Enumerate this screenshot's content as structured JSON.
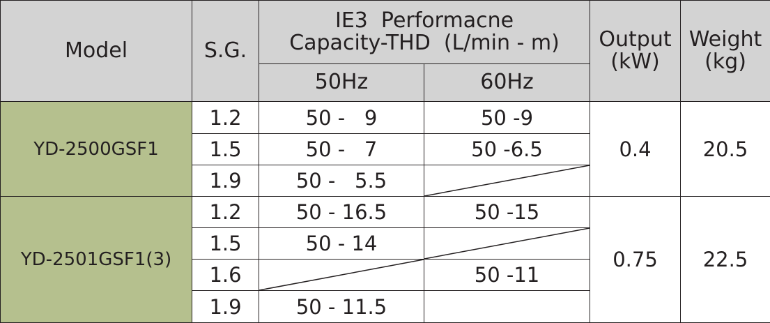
{
  "headers": {
    "model": "Model",
    "sg": "S.G.",
    "perf_line1": "IE3  Performacne",
    "perf_line2": "Capacity-THD  (L/min - m)",
    "hz50": "50Hz",
    "hz60": "60Hz",
    "output_line1": "Output",
    "output_line2": "(kW)",
    "weight_line1": "Weight",
    "weight_line2": "(kg)"
  },
  "groups": [
    {
      "model": "YD-2500GSF1",
      "output": "0.4",
      "weight": "20.5",
      "rows": [
        {
          "sg": "1.2",
          "hz50": "50 -   9",
          "hz60": "50 -9"
        },
        {
          "sg": "1.5",
          "hz50": "50 -   7",
          "hz60": "50 -6.5"
        },
        {
          "sg": "1.9",
          "hz50": "50 -   5.5",
          "hz60": ""
        }
      ]
    },
    {
      "model": "YD-2501GSF1(3)",
      "output": "0.75",
      "weight": "22.5",
      "rows": [
        {
          "sg": "1.2",
          "hz50": "50 - 16.5",
          "hz60": "50 -15"
        },
        {
          "sg": "1.5",
          "hz50": "50 - 14",
          "hz60": ""
        },
        {
          "sg": "1.6",
          "hz50": "",
          "hz60": "50 -11"
        },
        {
          "sg": "1.9",
          "hz50": "50 - 11.5",
          "hz60": ""
        }
      ]
    }
  ],
  "colors": {
    "header_bg": "#d3d3d3",
    "model_bg": "#b5c08e",
    "line": "#231f20"
  }
}
